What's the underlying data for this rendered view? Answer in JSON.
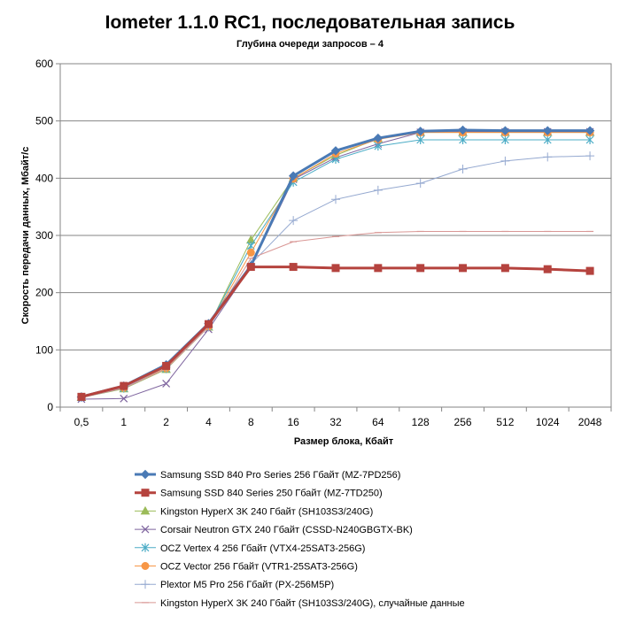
{
  "chart_data": {
    "type": "line",
    "title": "Iometer 1.1.0 RC1, последовательная запись",
    "subtitle": "Глубина очереди запросов – 4",
    "xlabel": "Размер блока, Кбайт",
    "ylabel": "Скорость передачи данных, Мбайт/с",
    "ylim": [
      0,
      600
    ],
    "yticks": [
      "0",
      "100",
      "200",
      "300",
      "400",
      "500",
      "600"
    ],
    "categories": [
      "0,5",
      "1",
      "2",
      "4",
      "8",
      "16",
      "32",
      "64",
      "128",
      "256",
      "512",
      "1024",
      "2048"
    ],
    "legend_position": "bottom",
    "series": [
      {
        "name": "Samsung SSD 840 Pro Series 256 Гбайт (MZ-7PD256)",
        "color": "#4a7ab5",
        "marker": "diamond",
        "width": 3,
        "values": [
          18,
          37,
          74,
          146,
          247,
          404,
          448,
          470,
          482,
          484,
          483,
          483,
          483
        ]
      },
      {
        "name": "Samsung SSD 840 Series 250 Гбайт (MZ-7TD250)",
        "color": "#b5433e",
        "marker": "square",
        "width": 3,
        "values": [
          18,
          37,
          72,
          145,
          245,
          245,
          243,
          243,
          243,
          243,
          243,
          241,
          238
        ]
      },
      {
        "name": "Kingston HyperX 3K 240 Гбайт (SH103S3/240G)",
        "color": "#9bbb59",
        "marker": "triangle",
        "width": 1,
        "values": [
          17,
          32,
          66,
          140,
          292,
          400,
          440,
          469,
          480,
          480,
          480,
          480,
          480
        ]
      },
      {
        "name": "Corsair Neutron GTX 240 Гбайт (CSSD-N240GBGTX-BK)",
        "color": "#7e649e",
        "marker": "x",
        "width": 1,
        "values": [
          14,
          15,
          41,
          136,
          245,
          398,
          436,
          460,
          480,
          481,
          481,
          481,
          481
        ]
      },
      {
        "name": "OCZ Vertex  4 256 Гбайт (VTX4-25SAT3-256G)",
        "color": "#4bacc6",
        "marker": "star",
        "width": 1,
        "values": [
          17,
          33,
          67,
          141,
          282,
          393,
          433,
          456,
          467,
          467,
          467,
          467,
          467
        ]
      },
      {
        "name": "OCZ Vector  256 Гбайт (VTR1-25SAT3-256G)",
        "color": "#f79646",
        "marker": "circle",
        "width": 1,
        "values": [
          18,
          34,
          68,
          141,
          270,
          399,
          443,
          468,
          480,
          480,
          480,
          480,
          480
        ]
      },
      {
        "name": "Plextor M5 Pro 256 Гбайт (PX-256M5P)",
        "color": "#95a9d0",
        "marker": "plus",
        "width": 1,
        "values": [
          17,
          34,
          70,
          140,
          250,
          326,
          363,
          379,
          391,
          416,
          430,
          437,
          439
        ]
      },
      {
        "name": "Kingston HyperX 3K 240 Гбайт (SH103S3/240G), случайные данные",
        "color": "#d99795",
        "marker": "dash",
        "width": 1,
        "values": [
          17,
          33,
          67,
          140,
          260,
          289,
          298,
          305,
          307,
          307,
          307,
          307,
          307
        ]
      }
    ]
  }
}
